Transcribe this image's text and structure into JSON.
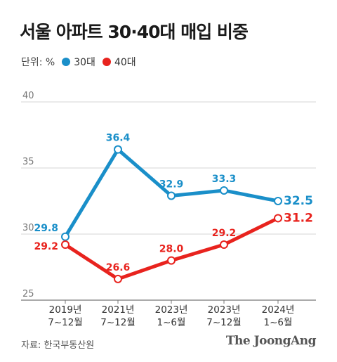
{
  "title": "서울 아파트 30·40대 매입 비중",
  "unit_label": "단위: %",
  "source": "자료: 한국부동산원",
  "brand": "The JoongAng",
  "chart_data": {
    "type": "line",
    "categories": [
      {
        "line1": "2019년",
        "line2": "7~12월"
      },
      {
        "line1": "2021년",
        "line2": "7~12월"
      },
      {
        "line1": "2023년",
        "line2": "1~6월"
      },
      {
        "line1": "2023년",
        "line2": "7~12월"
      },
      {
        "line1": "2024년",
        "line2": "1~6월"
      }
    ],
    "series": [
      {
        "name": "30대",
        "color": "#1a8fc9",
        "values": [
          29.8,
          36.4,
          32.9,
          33.3,
          32.5
        ]
      },
      {
        "name": "40대",
        "color": "#e8231e",
        "values": [
          29.2,
          26.6,
          28.0,
          29.2,
          31.2
        ]
      }
    ],
    "ylim": [
      25,
      40
    ],
    "yticks": [
      25,
      30,
      35,
      40
    ],
    "grid": true
  }
}
